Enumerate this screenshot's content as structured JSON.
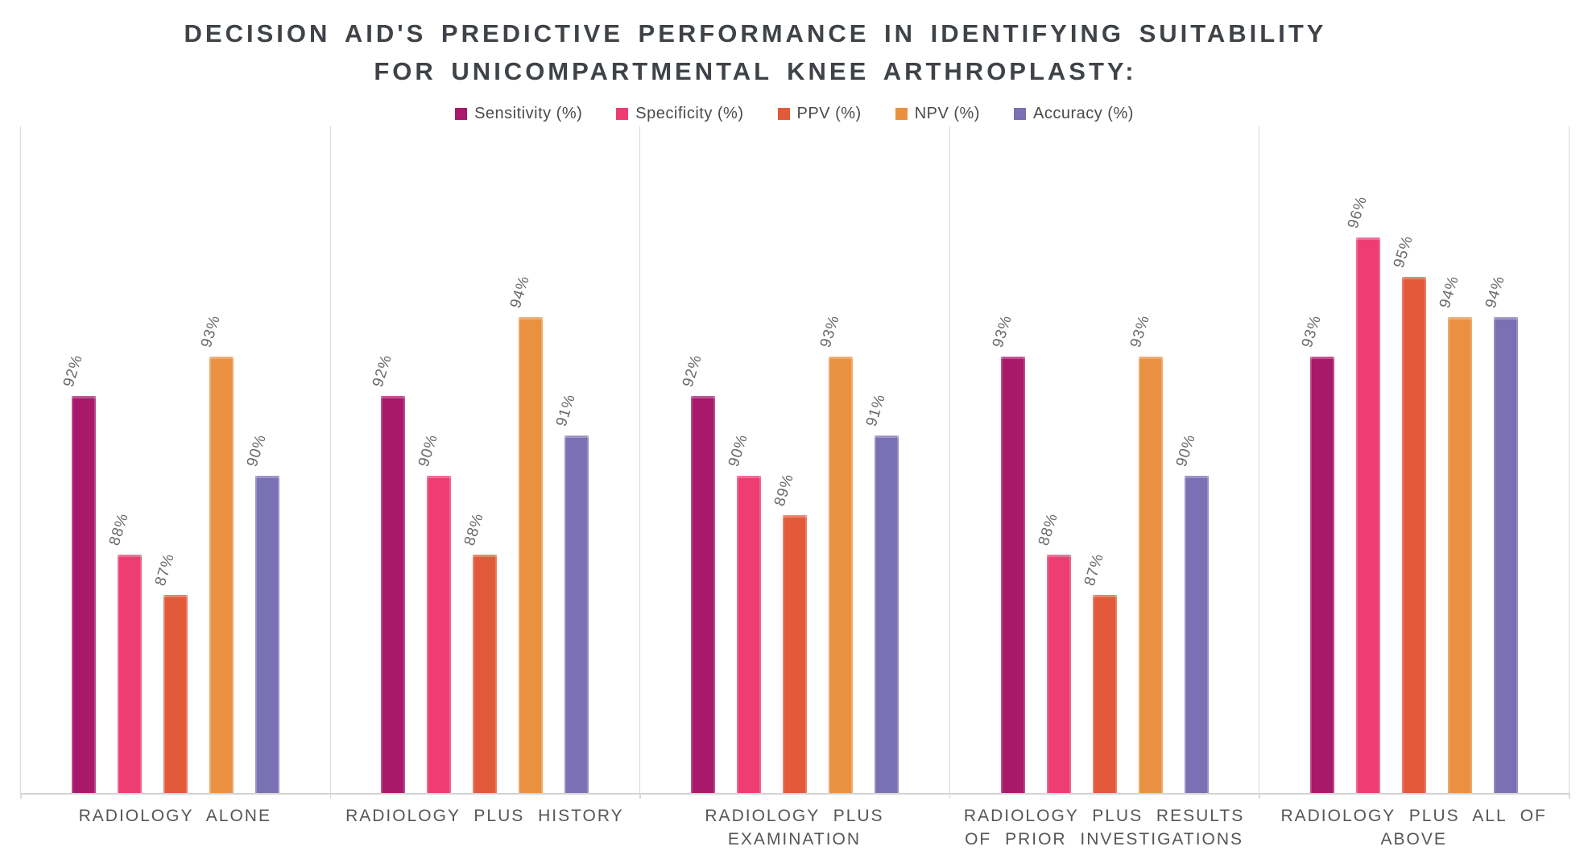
{
  "title": {
    "line1": "DECISION AID'S PREDICTIVE PERFORMANCE IN IDENTIFYING SUITABILITY",
    "line2": "FOR UNICOMPARTMENTAL KNEE ARTHROPLASTY:"
  },
  "chart_data": {
    "type": "bar",
    "title": "DECISION AID'S PREDICTIVE PERFORMANCE IN IDENTIFYING SUITABILITY FOR UNICOMPARTMENTAL KNEE ARTHROPLASTY:",
    "categories": [
      "RADIOLOGY ALONE",
      "RADIOLOGY PLUS HISTORY",
      "RADIOLOGY PLUS EXAMINATION",
      "RADIOLOGY PLUS RESULTS OF PRIOR INVESTIGATIONS",
      "RADIOLOGY PLUS ALL OF ABOVE"
    ],
    "category_lines": [
      [
        "RADIOLOGY ALONE"
      ],
      [
        "RADIOLOGY PLUS HISTORY"
      ],
      [
        "RADIOLOGY PLUS",
        "EXAMINATION"
      ],
      [
        "RADIOLOGY PLUS RESULTS",
        "OF PRIOR INVESTIGATIONS"
      ],
      [
        "RADIOLOGY PLUS ALL OF",
        "ABOVE"
      ]
    ],
    "series": [
      {
        "name": "Sensitivity (%)",
        "color": "#A8196B",
        "values": [
          92,
          92,
          92,
          93,
          93
        ]
      },
      {
        "name": "Specificity (%)",
        "color": "#EE3D72",
        "values": [
          88,
          90,
          90,
          88,
          96
        ]
      },
      {
        "name": "PPV (%)",
        "color": "#E25A3A",
        "values": [
          87,
          88,
          89,
          87,
          95
        ]
      },
      {
        "name": "NPV (%)",
        "color": "#E99140",
        "values": [
          93,
          94,
          93,
          93,
          94
        ]
      },
      {
        "name": "Accuracy (%)",
        "color": "#7A70B4",
        "values": [
          90,
          91,
          91,
          90,
          94
        ]
      }
    ],
    "data_label_format": "{value}%",
    "data_label_rotation_deg": -73,
    "axis": {
      "min": 82,
      "max": 98.8,
      "y_axis_visible": false,
      "gridlines": false
    },
    "legend_position": "top",
    "panel_separator_color": "#D9D9D9",
    "data_label_color": "#6A6A6A",
    "category_label_color": "#565656",
    "title_color": "#3F4347"
  }
}
